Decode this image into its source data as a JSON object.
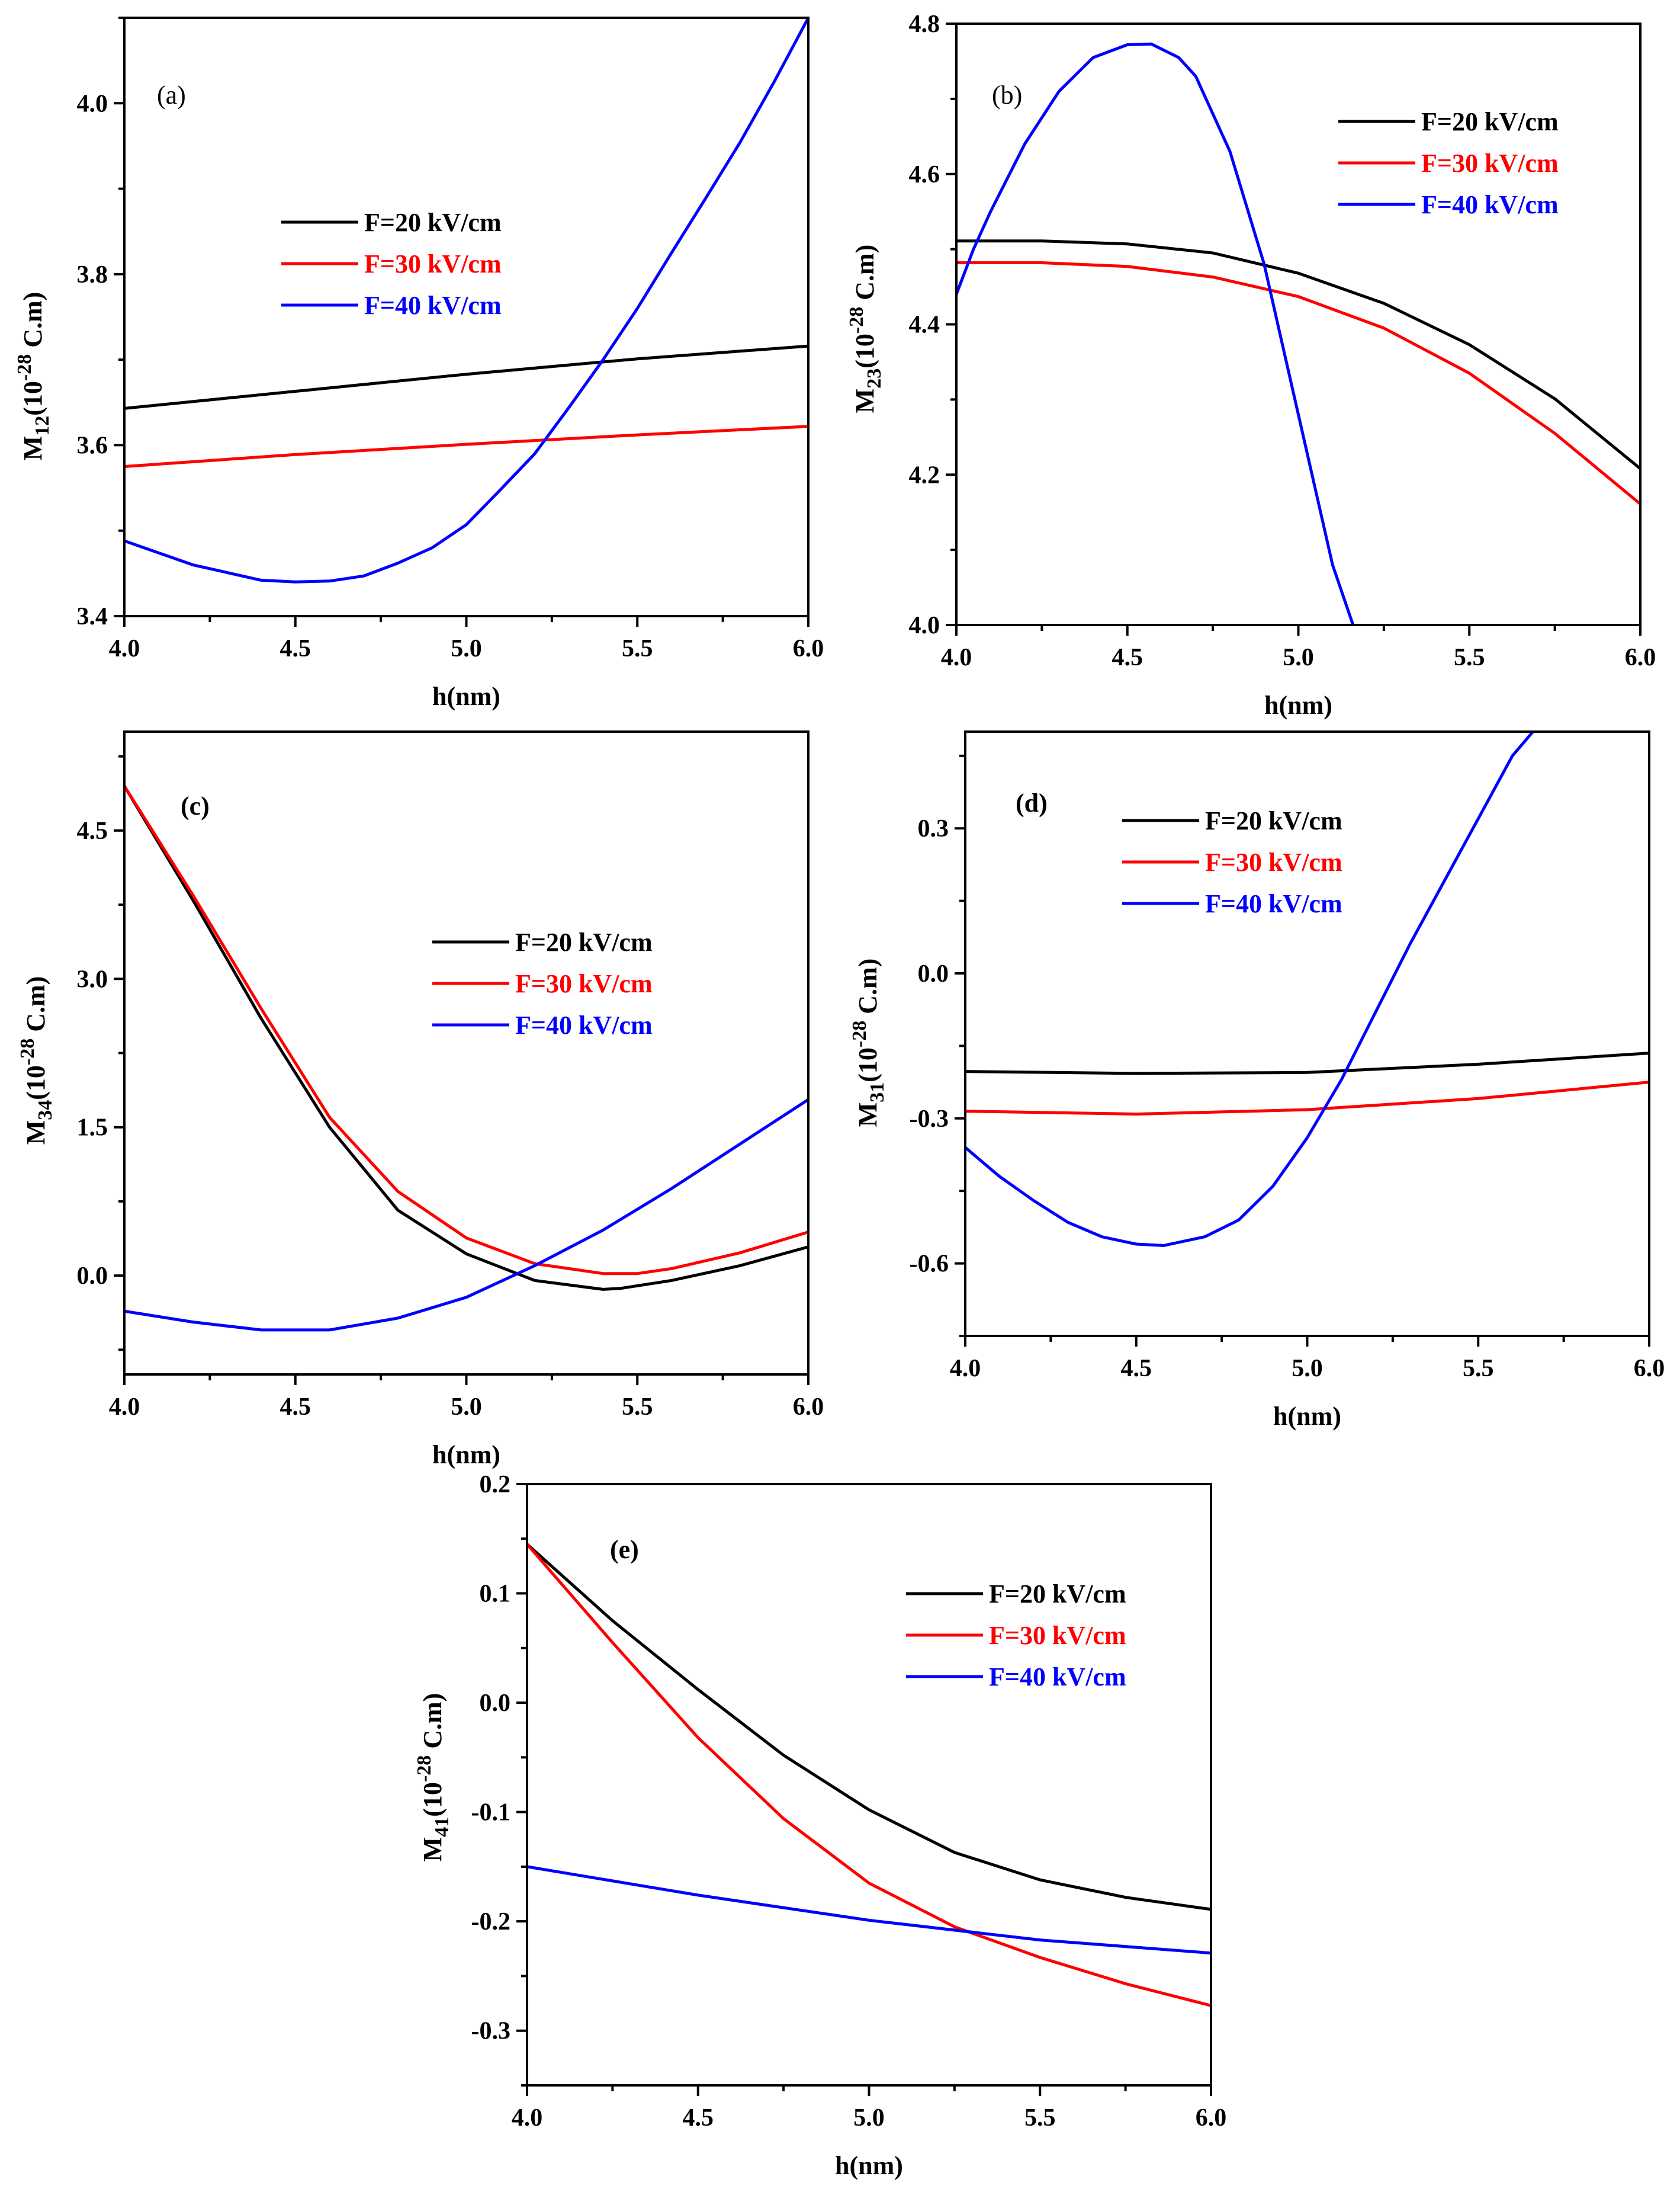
{
  "chart_data": [
    {
      "panel": "(a)",
      "type": "line",
      "xlabel": "h(nm)",
      "ylabel_main": "M",
      "ylabel_sub": "12",
      "ylabel_unit_pre": "(10",
      "ylabel_exp": "-28",
      "ylabel_unit_post": " C.m)",
      "xlim": [
        4.0,
        6.0
      ],
      "ylim": [
        3.4,
        4.1
      ],
      "xticks": [
        4.0,
        4.5,
        5.0,
        5.5,
        6.0
      ],
      "xtick_labels": [
        "4.0",
        "4.5",
        "5.0",
        "5.5",
        "6.0"
      ],
      "yticks": [
        3.4,
        3.6,
        3.8,
        4.0
      ],
      "ytick_labels": [
        "3.4",
        "3.6",
        "3.8",
        "4.0"
      ],
      "legend_bold": true,
      "legend_colored": true,
      "series": [
        {
          "name": "F=20 kV/cm",
          "color": "#000000",
          "x": [
            4.0,
            4.5,
            5.0,
            5.5,
            6.0
          ],
          "y": [
            3.643,
            3.663,
            3.683,
            3.701,
            3.716
          ]
        },
        {
          "name": "F=30 kV/cm",
          "color": "#ff0000",
          "x": [
            4.0,
            4.5,
            5.0,
            5.5,
            6.0
          ],
          "y": [
            3.575,
            3.589,
            3.601,
            3.612,
            3.622
          ]
        },
        {
          "name": "F=40 kV/cm",
          "color": "#0000ff",
          "x": [
            4.0,
            4.2,
            4.4,
            4.5,
            4.6,
            4.7,
            4.8,
            4.9,
            5.0,
            5.1,
            5.2,
            5.3,
            5.4,
            5.5,
            5.6,
            5.7,
            5.8,
            5.9,
            6.0
          ],
          "y": [
            3.488,
            3.46,
            3.442,
            3.44,
            3.441,
            3.447,
            3.462,
            3.48,
            3.507,
            3.548,
            3.59,
            3.644,
            3.7,
            3.76,
            3.825,
            3.889,
            3.954,
            4.025,
            4.1
          ]
        }
      ]
    },
    {
      "panel": "(b)",
      "type": "line",
      "xlabel": "h(nm)",
      "ylabel_main": "M",
      "ylabel_sub": "23",
      "ylabel_unit_pre": "(10",
      "ylabel_exp": "-28",
      "ylabel_unit_post": " C.m)",
      "xlim": [
        4.0,
        6.0
      ],
      "ylim": [
        4.0,
        4.8
      ],
      "xticks": [
        4.0,
        4.5,
        5.0,
        5.5,
        6.0
      ],
      "xtick_labels": [
        "4.0",
        "4.5",
        "5.0",
        "5.5",
        "6.0"
      ],
      "yticks": [
        4.0,
        4.2,
        4.4,
        4.6,
        4.8
      ],
      "ytick_labels": [
        "4.0",
        "4.2",
        "4.4",
        "4.6",
        "4.8"
      ],
      "legend_bold": true,
      "legend_colored": true,
      "series": [
        {
          "name": "F=20 kV/cm",
          "color": "#000000",
          "x": [
            4.0,
            4.25,
            4.5,
            4.75,
            5.0,
            5.25,
            5.5,
            5.75,
            6.0
          ],
          "y": [
            4.511,
            4.511,
            4.507,
            4.495,
            4.468,
            4.428,
            4.373,
            4.301,
            4.208
          ]
        },
        {
          "name": "F=30 kV/cm",
          "color": "#ff0000",
          "x": [
            4.0,
            4.25,
            4.5,
            4.75,
            5.0,
            5.25,
            5.5,
            5.75,
            6.0
          ],
          "y": [
            4.482,
            4.482,
            4.477,
            4.463,
            4.437,
            4.395,
            4.335,
            4.255,
            4.161
          ]
        },
        {
          "name": "F=40 kV/cm",
          "color": "#0000ff",
          "x": [
            4.0,
            4.05,
            4.1,
            4.2,
            4.3,
            4.4,
            4.5,
            4.57,
            4.65,
            4.7,
            4.8,
            4.9,
            4.95,
            5.0,
            5.05,
            5.1,
            5.16
          ],
          "y": [
            4.44,
            4.5,
            4.55,
            4.64,
            4.71,
            4.755,
            4.772,
            4.773,
            4.755,
            4.73,
            4.63,
            4.48,
            4.38,
            4.28,
            4.18,
            4.08,
            4.0
          ]
        }
      ]
    },
    {
      "panel": "(c)",
      "type": "line",
      "xlabel": "h(nm)",
      "ylabel_main": "M",
      "ylabel_sub": "34",
      "ylabel_unit_pre": "(10",
      "ylabel_exp": "-28",
      "ylabel_unit_post": " C.m)",
      "xlim": [
        4.0,
        6.0
      ],
      "ylim": [
        -1.0,
        5.5
      ],
      "xticks": [
        4.0,
        4.5,
        5.0,
        5.5,
        6.0
      ],
      "xtick_labels": [
        "4.0",
        "4.5",
        "5.0",
        "5.5",
        "6.0"
      ],
      "yticks": [
        0.0,
        1.5,
        3.0,
        4.5
      ],
      "ytick_labels": [
        "0.0",
        "1.5",
        "3.0",
        "4.5"
      ],
      "legend_bold": true,
      "legend_colored": true,
      "series": [
        {
          "name": "F=20 kV/cm",
          "color": "#000000",
          "x": [
            4.0,
            4.2,
            4.4,
            4.6,
            4.8,
            5.0,
            5.2,
            5.4,
            5.45,
            5.6,
            5.8,
            6.0
          ],
          "y": [
            4.95,
            3.8,
            2.6,
            1.5,
            0.66,
            0.22,
            -0.05,
            -0.14,
            -0.13,
            -0.05,
            0.1,
            0.29
          ]
        },
        {
          "name": "F=30 kV/cm",
          "color": "#ff0000",
          "x": [
            4.0,
            4.2,
            4.4,
            4.6,
            4.8,
            5.0,
            5.2,
            5.4,
            5.5,
            5.6,
            5.8,
            6.0
          ],
          "y": [
            4.95,
            3.85,
            2.7,
            1.6,
            0.85,
            0.38,
            0.12,
            0.02,
            0.02,
            0.07,
            0.23,
            0.44
          ]
        },
        {
          "name": "F=40 kV/cm",
          "color": "#0000ff",
          "x": [
            4.0,
            4.2,
            4.4,
            4.6,
            4.8,
            5.0,
            5.2,
            5.4,
            5.6,
            5.8,
            6.0
          ],
          "y": [
            -0.36,
            -0.47,
            -0.55,
            -0.55,
            -0.43,
            -0.22,
            0.1,
            0.46,
            0.88,
            1.33,
            1.78
          ]
        }
      ]
    },
    {
      "panel": "(d)",
      "type": "line",
      "xlabel": "h(nm)",
      "ylabel_main": "M",
      "ylabel_sub": "31",
      "ylabel_unit_pre": "(10",
      "ylabel_exp": "-28",
      "ylabel_unit_post": " C.m)",
      "xlim": [
        4.0,
        6.0
      ],
      "ylim": [
        -0.75,
        0.5
      ],
      "xticks": [
        4.0,
        4.5,
        5.0,
        5.5,
        6.0
      ],
      "xtick_labels": [
        "4.0",
        "4.5",
        "5.0",
        "5.5",
        "6.0"
      ],
      "yticks": [
        -0.6,
        -0.3,
        0.0,
        0.3
      ],
      "ytick_labels": [
        "-0.6",
        "-0.3",
        "0.0",
        "0.3"
      ],
      "legend_bold": true,
      "legend_colored": true,
      "series": [
        {
          "name": "F=20 kV/cm",
          "color": "#000000",
          "x": [
            4.0,
            4.5,
            5.0,
            5.5,
            6.0
          ],
          "y": [
            -0.203,
            -0.207,
            -0.205,
            -0.188,
            -0.165
          ]
        },
        {
          "name": "F=30 kV/cm",
          "color": "#ff0000",
          "x": [
            4.0,
            4.5,
            5.0,
            5.5,
            6.0
          ],
          "y": [
            -0.285,
            -0.291,
            -0.282,
            -0.259,
            -0.225
          ]
        },
        {
          "name": "F=40 kV/cm",
          "color": "#0000ff",
          "x": [
            4.0,
            4.1,
            4.2,
            4.3,
            4.4,
            4.5,
            4.58,
            4.7,
            4.8,
            4.9,
            5.0,
            5.1,
            5.2,
            5.3,
            5.4,
            5.5,
            5.6,
            5.66
          ],
          "y": [
            -0.36,
            -0.42,
            -0.47,
            -0.515,
            -0.545,
            -0.56,
            -0.563,
            -0.545,
            -0.51,
            -0.44,
            -0.34,
            -0.22,
            -0.08,
            0.06,
            0.19,
            0.32,
            0.45,
            0.5
          ]
        }
      ]
    },
    {
      "panel": "(e)",
      "type": "line",
      "xlabel": "h(nm)",
      "ylabel_main": "M",
      "ylabel_sub": "41",
      "ylabel_unit_pre": "(10",
      "ylabel_exp": "-28",
      "ylabel_unit_post": " C.m)",
      "xlim": [
        4.0,
        6.0
      ],
      "ylim": [
        -0.35,
        0.2
      ],
      "xticks": [
        4.0,
        4.5,
        5.0,
        5.5,
        6.0
      ],
      "xtick_labels": [
        "4.0",
        "4.5",
        "5.0",
        "5.5",
        "6.0"
      ],
      "yticks": [
        -0.3,
        -0.2,
        -0.1,
        0.0,
        0.1,
        0.2
      ],
      "ytick_labels": [
        "-0.3",
        "-0.2",
        "-0.1",
        "0.0",
        "0.1",
        "0.2"
      ],
      "legend_bold": true,
      "legend_colored": true,
      "series": [
        {
          "name": "F=20 kV/cm",
          "color": "#000000",
          "x": [
            4.0,
            4.25,
            4.5,
            4.75,
            5.0,
            5.25,
            5.5,
            5.75,
            6.0
          ],
          "y": [
            0.145,
            0.075,
            0.012,
            -0.048,
            -0.098,
            -0.137,
            -0.162,
            -0.178,
            -0.189
          ]
        },
        {
          "name": "F=30 kV/cm",
          "color": "#ff0000",
          "x": [
            4.0,
            4.25,
            4.5,
            4.75,
            5.0,
            5.25,
            5.5,
            5.75,
            6.0
          ],
          "y": [
            0.145,
            0.055,
            -0.032,
            -0.106,
            -0.165,
            -0.205,
            -0.233,
            -0.257,
            -0.277
          ]
        },
        {
          "name": "F=40 kV/cm",
          "color": "#0000ff",
          "x": [
            4.0,
            4.5,
            5.0,
            5.5,
            6.0
          ],
          "y": [
            -0.15,
            -0.176,
            -0.199,
            -0.217,
            -0.229
          ]
        }
      ]
    }
  ]
}
